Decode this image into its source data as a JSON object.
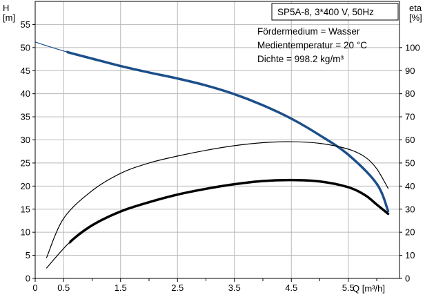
{
  "chart_data": {
    "type": "line",
    "model_box": "SP5A-8, 3*400 V, 50Hz",
    "info_lines": [
      "Fördermedium = Wasser",
      "Medientemperatur = 20 °C",
      "Dichte = 998.2 kg/m³"
    ],
    "left_axis": {
      "label_line1": "H",
      "label_line2": "[m]",
      "ylim": [
        0,
        60
      ],
      "ticks": [
        0,
        5,
        10,
        15,
        20,
        25,
        30,
        35,
        40,
        45,
        50,
        55
      ]
    },
    "right_axis": {
      "label_line1": "eta",
      "label_line2": "[%]",
      "ylim": [
        0,
        120
      ],
      "ticks": [
        0,
        10,
        20,
        30,
        40,
        50,
        60,
        70,
        80,
        90,
        100
      ]
    },
    "x_axis": {
      "label": "Q [m³/h]",
      "xlim": [
        0,
        6.4
      ],
      "tick_labels": [
        "0",
        "0.5",
        "1.5",
        "2.5",
        "3.5",
        "4.5",
        "5.5"
      ],
      "tick_values": [
        0,
        0.5,
        1.5,
        2.5,
        3.5,
        4.5,
        5.5
      ],
      "minor_ticks": [
        1,
        2,
        3,
        4,
        5,
        6
      ]
    },
    "grid": true,
    "series": [
      {
        "axis": "left",
        "color": "#1c4f8a",
        "width": 3.5,
        "thin_width": 1.2,
        "thick_from_x": 0.55,
        "x": [
          0.0,
          0.3,
          0.6,
          1.0,
          1.5,
          2.0,
          2.5,
          3.0,
          3.5,
          4.0,
          4.5,
          5.0,
          5.5,
          6.0,
          6.2
        ],
        "y": [
          51.2,
          50.0,
          48.9,
          47.6,
          46.0,
          44.6,
          43.3,
          41.8,
          39.9,
          37.5,
          34.6,
          31.0,
          26.8,
          20.5,
          14.6
        ]
      },
      {
        "axis": "right",
        "color": "#000000",
        "width": 1.2,
        "x": [
          0.2,
          0.5,
          1.0,
          1.5,
          2.0,
          2.5,
          3.0,
          3.5,
          4.0,
          4.5,
          5.0,
          5.5,
          5.8,
          6.0,
          6.2
        ],
        "y": [
          9,
          26,
          38,
          45.5,
          50,
          53,
          55.5,
          57.5,
          58.8,
          59.2,
          58.5,
          56,
          52.5,
          47.5,
          39
        ]
      },
      {
        "axis": "right",
        "color": "#000000",
        "width": 3.5,
        "thin_width": 1.2,
        "thick_from_x": 0.6,
        "x": [
          0.2,
          0.6,
          1.0,
          1.5,
          2.0,
          2.5,
          3.0,
          3.5,
          4.0,
          4.5,
          5.0,
          5.5,
          5.8,
          6.0,
          6.2
        ],
        "y": [
          4.5,
          15.5,
          23,
          29,
          33,
          36.3,
          38.8,
          40.8,
          42.2,
          42.6,
          42,
          39.5,
          36,
          32,
          28
        ]
      }
    ]
  }
}
